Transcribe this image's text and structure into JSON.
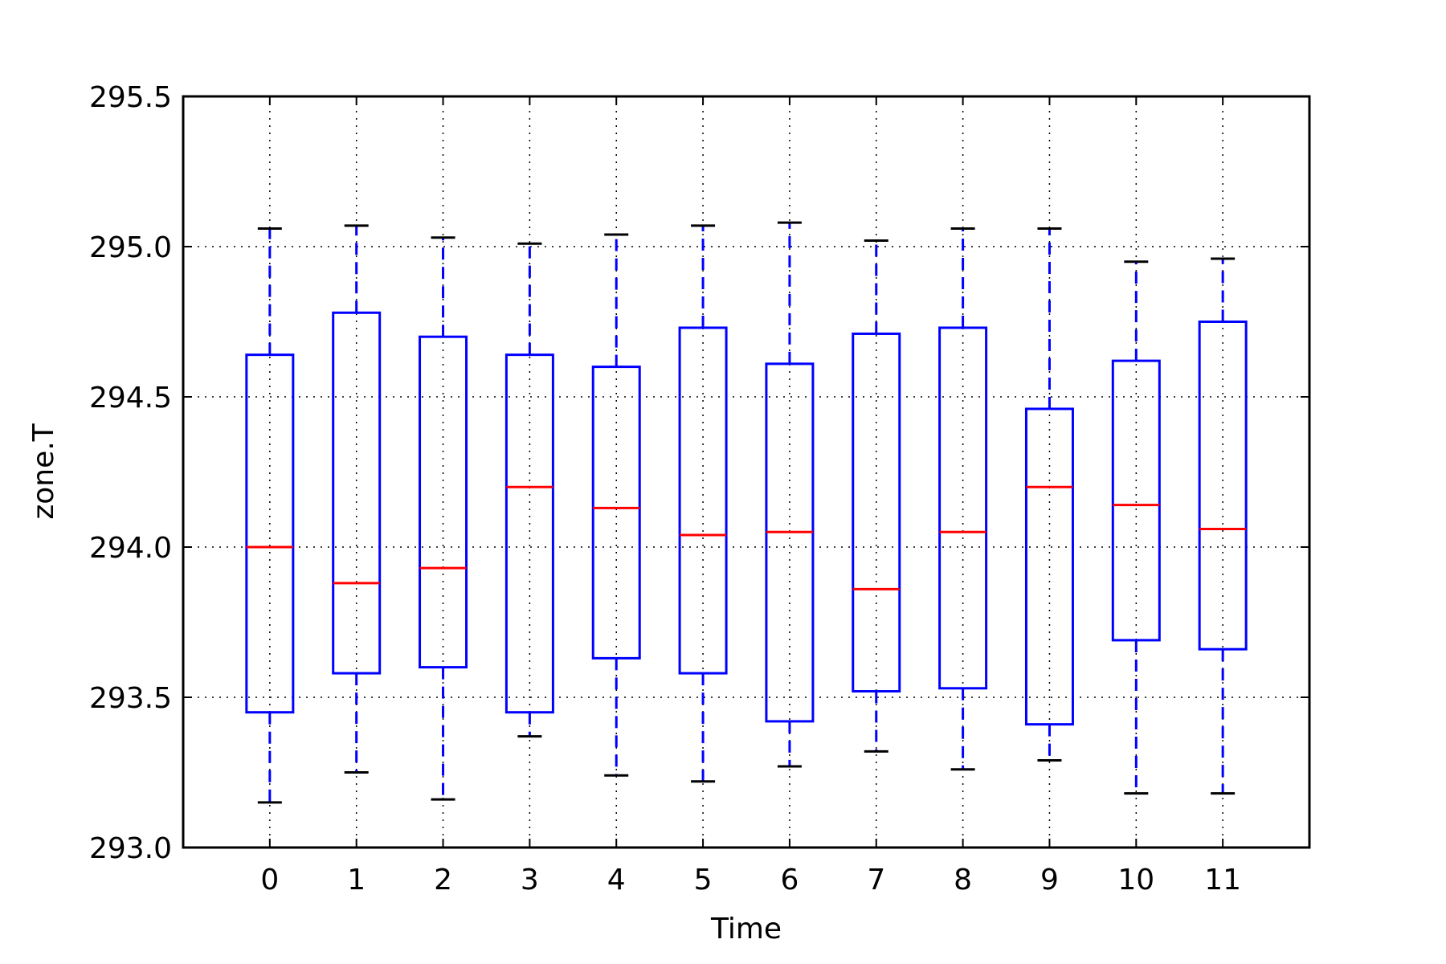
{
  "chart_data": {
    "type": "box",
    "title": "",
    "xlabel": "Time",
    "ylabel": "zone.T",
    "categories": [
      "0",
      "1",
      "2",
      "3",
      "4",
      "5",
      "6",
      "7",
      "8",
      "9",
      "10",
      "11"
    ],
    "ylim": [
      293.0,
      295.5
    ],
    "yticks": [
      "293.0",
      "293.5",
      "294.0",
      "294.5",
      "295.0",
      "295.5"
    ],
    "grid": true,
    "boxes": [
      {
        "whisker_low": 293.15,
        "q1": 293.45,
        "median": 294.0,
        "q3": 294.64,
        "whisker_high": 295.06
      },
      {
        "whisker_low": 293.25,
        "q1": 293.58,
        "median": 293.88,
        "q3": 294.78,
        "whisker_high": 295.07
      },
      {
        "whisker_low": 293.16,
        "q1": 293.6,
        "median": 293.93,
        "q3": 294.7,
        "whisker_high": 295.03
      },
      {
        "whisker_low": 293.37,
        "q1": 293.45,
        "median": 294.2,
        "q3": 294.64,
        "whisker_high": 295.01
      },
      {
        "whisker_low": 293.24,
        "q1": 293.63,
        "median": 294.13,
        "q3": 294.6,
        "whisker_high": 295.04
      },
      {
        "whisker_low": 293.22,
        "q1": 293.58,
        "median": 294.04,
        "q3": 294.73,
        "whisker_high": 295.07
      },
      {
        "whisker_low": 293.27,
        "q1": 293.42,
        "median": 294.05,
        "q3": 294.61,
        "whisker_high": 295.08
      },
      {
        "whisker_low": 293.32,
        "q1": 293.52,
        "median": 293.86,
        "q3": 294.71,
        "whisker_high": 295.02
      },
      {
        "whisker_low": 293.26,
        "q1": 293.53,
        "median": 294.05,
        "q3": 294.73,
        "whisker_high": 295.06
      },
      {
        "whisker_low": 293.29,
        "q1": 293.41,
        "median": 294.2,
        "q3": 294.46,
        "whisker_high": 295.06
      },
      {
        "whisker_low": 293.18,
        "q1": 293.69,
        "median": 294.14,
        "q3": 294.62,
        "whisker_high": 294.95
      },
      {
        "whisker_low": 293.18,
        "q1": 293.66,
        "median": 294.06,
        "q3": 294.75,
        "whisker_high": 294.96
      }
    ],
    "colors": {
      "box": "#0000ff",
      "median": "#ff0000",
      "cap": "#000000",
      "grid": "#000000",
      "axes": "#000000"
    }
  }
}
